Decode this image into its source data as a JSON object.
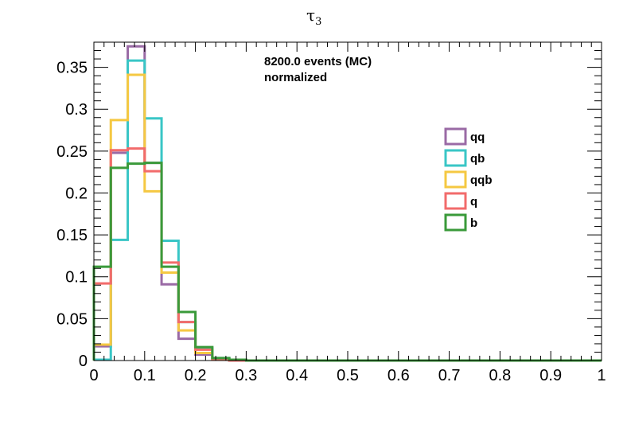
{
  "chart_data": {
    "type": "step-histogram",
    "title": "τ",
    "title_subscript": "3",
    "annotations": [
      "8200.0 events (MC)",
      "normalized"
    ],
    "xlim": [
      0,
      1
    ],
    "ylim": [
      0,
      0.38
    ],
    "x_ticks": [
      0,
      0.1,
      0.2,
      0.3,
      0.4,
      0.5,
      0.6,
      0.7,
      0.8,
      0.9,
      1
    ],
    "x_tick_labels": [
      "0",
      "0.1",
      "0.2",
      "0.3",
      "0.4",
      "0.5",
      "0.6",
      "0.7",
      "0.8",
      "0.9",
      "1"
    ],
    "y_ticks": [
      0,
      0.05,
      0.1,
      0.15,
      0.2,
      0.25,
      0.3,
      0.35
    ],
    "y_tick_labels": [
      "0",
      "0.05",
      "0.1",
      "0.15",
      "0.2",
      "0.25",
      "0.3",
      "0.35"
    ],
    "bin_edges": [
      0,
      0.0333,
      0.0667,
      0.1,
      0.1333,
      0.1667,
      0.2,
      0.2333,
      0.2667,
      0.3,
      0.3333,
      0.3667,
      0.4,
      0.4333,
      0.4667,
      0.5,
      0.5333,
      0.5667,
      0.6,
      0.6333,
      0.6667,
      0.7,
      0.7333,
      0.7667,
      0.8,
      0.8333,
      0.8667,
      0.9,
      0.9333,
      0.9667,
      1
    ],
    "legend_position": "right",
    "series": [
      {
        "name": "qq",
        "color": "#9a6aa5",
        "values": [
          0.017,
          0.248,
          0.375,
          0.236,
          0.091,
          0.026,
          0.007,
          0.001,
          0,
          0,
          0,
          0,
          0,
          0,
          0,
          0,
          0,
          0,
          0,
          0,
          0,
          0,
          0,
          0,
          0,
          0,
          0,
          0,
          0,
          0
        ]
      },
      {
        "name": "qb",
        "color": "#39c6c6",
        "values": [
          0.001,
          0.144,
          0.358,
          0.289,
          0.143,
          0.046,
          0.015,
          0.003,
          0.001,
          0,
          0,
          0,
          0,
          0,
          0,
          0,
          0,
          0,
          0,
          0,
          0,
          0,
          0,
          0,
          0,
          0,
          0,
          0,
          0,
          0
        ]
      },
      {
        "name": "qqb",
        "color": "#f5c842",
        "values": [
          0.019,
          0.287,
          0.341,
          0.202,
          0.105,
          0.036,
          0.009,
          0.001,
          0,
          0,
          0,
          0,
          0,
          0,
          0,
          0,
          0,
          0,
          0,
          0,
          0,
          0,
          0,
          0,
          0,
          0,
          0,
          0,
          0,
          0
        ]
      },
      {
        "name": "q",
        "color": "#f26b6b",
        "values": [
          0.092,
          0.251,
          0.253,
          0.226,
          0.117,
          0.046,
          0.013,
          0.002,
          0,
          0,
          0,
          0,
          0,
          0,
          0,
          0,
          0,
          0,
          0,
          0,
          0,
          0,
          0,
          0,
          0,
          0,
          0,
          0,
          0,
          0
        ]
      },
      {
        "name": "b",
        "color": "#3a9a3a",
        "values": [
          0.112,
          0.23,
          0.235,
          0.236,
          0.112,
          0.058,
          0.016,
          0.003,
          0.001,
          0,
          0,
          0,
          0,
          0,
          0,
          0,
          0,
          0,
          0,
          0,
          0,
          0,
          0,
          0,
          0,
          0,
          0,
          0,
          0,
          0
        ]
      }
    ]
  }
}
